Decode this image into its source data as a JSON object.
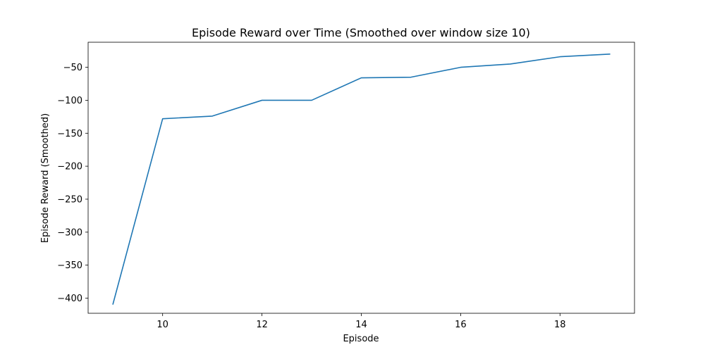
{
  "chart_data": {
    "type": "line",
    "title": "Episode Reward over Time (Smoothed over window size 10)",
    "xlabel": "Episode",
    "ylabel": "Episode Reward (Smoothed)",
    "x": [
      9,
      10,
      11,
      12,
      13,
      14,
      15,
      16,
      17,
      18,
      19
    ],
    "series": [
      {
        "name": "Episode Reward (Smoothed)",
        "values": [
          -409,
          -128,
          -124,
          -100,
          -100,
          -66,
          -65,
          -50,
          -45,
          -34,
          -30
        ],
        "color": "#1f77b4"
      }
    ],
    "xlim": [
      8.5,
      19.5
    ],
    "ylim": [
      -423,
      -12
    ],
    "xticks": [
      10,
      12,
      14,
      16,
      18
    ],
    "xtick_labels": [
      "10",
      "12",
      "14",
      "16",
      "18"
    ],
    "yticks": [
      -50,
      -100,
      -150,
      -200,
      -250,
      -300,
      -350,
      -400
    ],
    "ytick_labels": [
      "−50",
      "−100",
      "−150",
      "−200",
      "−250",
      "−300",
      "−350",
      "−400"
    ],
    "grid": false,
    "legend": "none"
  }
}
